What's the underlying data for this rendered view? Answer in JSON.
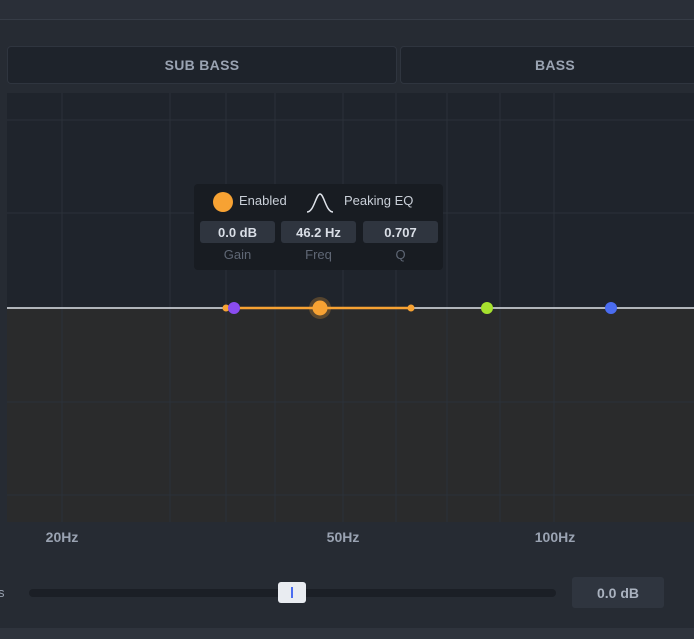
{
  "bands": {
    "sub_bass": "SUB BASS",
    "bass": "BASS"
  },
  "freq_axis": {
    "labels": [
      "20Hz",
      "50Hz",
      "100Hz"
    ]
  },
  "tooltip": {
    "enabled_label": "Enabled",
    "filter_type": "Peaking EQ",
    "gain_value": "0.0 dB",
    "freq_value": "46.2 Hz",
    "q_value": "0.707",
    "gain_caption": "Gain",
    "freq_caption": "Freq",
    "q_caption": "Q"
  },
  "slider": {
    "label": "s",
    "value": "0.0 dB"
  },
  "colors": {
    "selected_band": "#f7a233",
    "band_purple": "#8a4cf0",
    "band_lime": "#a6e22e",
    "band_blue": "#4a6cf0"
  }
}
